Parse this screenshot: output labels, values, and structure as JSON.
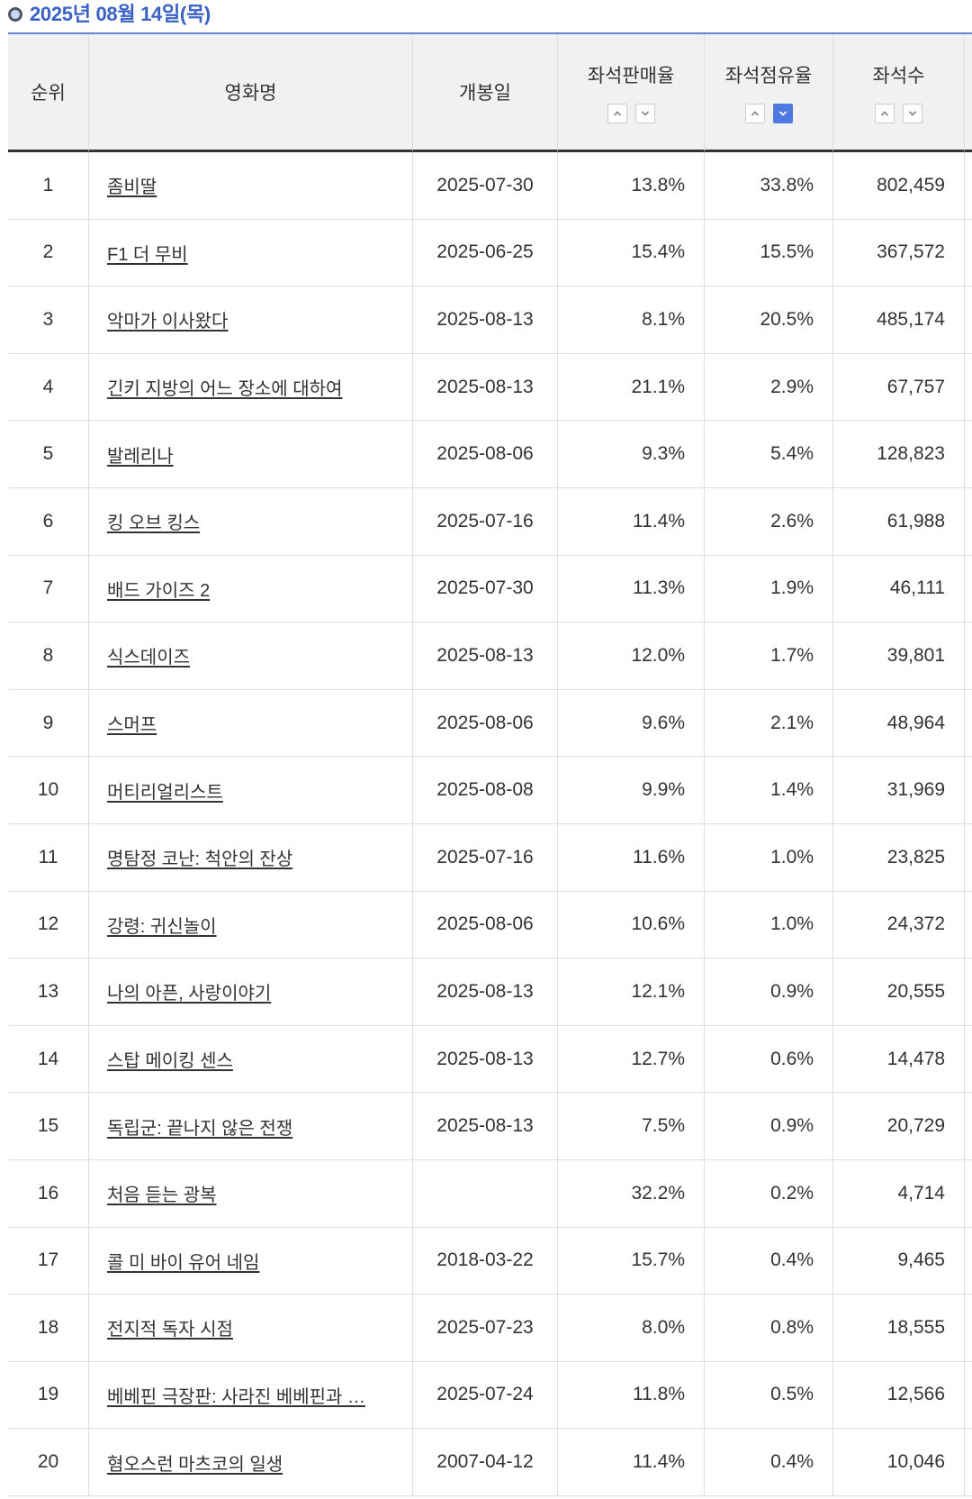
{
  "page": {
    "date_title": "2025년 08월 14일(목)"
  },
  "icons": {
    "bullet": "circle-bullet-icon",
    "sort_asc": "chevron-up-icon",
    "sort_desc": "chevron-down-icon"
  },
  "colors": {
    "accent": "#3a62c4",
    "title_rule": "#5d82d6",
    "header_bg": "#f1f1f1",
    "header_rule": "#333333",
    "grid": "#dedede",
    "text": "#333333",
    "sort_active": "#4f78e0",
    "sort_border": "#cccccc",
    "sort_chevron": "#8a8a8a",
    "bullet_ring": "#4d5566",
    "bullet_fill": "#c9d6ee"
  },
  "table": {
    "columns": [
      {
        "label": "순위",
        "sortable": false
      },
      {
        "label": "영화명",
        "sortable": false
      },
      {
        "label": "개봉일",
        "sortable": false
      },
      {
        "label": "좌석판매율",
        "sortable": true,
        "sort_asc_active": false,
        "sort_desc_active": false
      },
      {
        "label": "좌석점유율",
        "sortable": true,
        "sort_asc_active": false,
        "sort_desc_active": true
      },
      {
        "label": "좌석수",
        "sortable": true,
        "sort_asc_active": false,
        "sort_desc_active": false
      }
    ],
    "rows": [
      {
        "rank": "1",
        "title": "좀비딸",
        "open_date": "2025-07-30",
        "seat_sales_rate": "13.8%",
        "seat_share": "33.8%",
        "seats": "802,459"
      },
      {
        "rank": "2",
        "title": "F1 더 무비",
        "open_date": "2025-06-25",
        "seat_sales_rate": "15.4%",
        "seat_share": "15.5%",
        "seats": "367,572"
      },
      {
        "rank": "3",
        "title": "악마가 이사왔다",
        "open_date": "2025-08-13",
        "seat_sales_rate": "8.1%",
        "seat_share": "20.5%",
        "seats": "485,174"
      },
      {
        "rank": "4",
        "title": "긴키 지방의 어느 장소에 대하여",
        "open_date": "2025-08-13",
        "seat_sales_rate": "21.1%",
        "seat_share": "2.9%",
        "seats": "67,757"
      },
      {
        "rank": "5",
        "title": "발레리나",
        "open_date": "2025-08-06",
        "seat_sales_rate": "9.3%",
        "seat_share": "5.4%",
        "seats": "128,823"
      },
      {
        "rank": "6",
        "title": "킹 오브 킹스",
        "open_date": "2025-07-16",
        "seat_sales_rate": "11.4%",
        "seat_share": "2.6%",
        "seats": "61,988"
      },
      {
        "rank": "7",
        "title": "배드 가이즈 2",
        "open_date": "2025-07-30",
        "seat_sales_rate": "11.3%",
        "seat_share": "1.9%",
        "seats": "46,111"
      },
      {
        "rank": "8",
        "title": "식스데이즈",
        "open_date": "2025-08-13",
        "seat_sales_rate": "12.0%",
        "seat_share": "1.7%",
        "seats": "39,801"
      },
      {
        "rank": "9",
        "title": "스머프",
        "open_date": "2025-08-06",
        "seat_sales_rate": "9.6%",
        "seat_share": "2.1%",
        "seats": "48,964"
      },
      {
        "rank": "10",
        "title": "머티리얼리스트",
        "open_date": "2025-08-08",
        "seat_sales_rate": "9.9%",
        "seat_share": "1.4%",
        "seats": "31,969"
      },
      {
        "rank": "11",
        "title": "명탐정 코난: 척안의 잔상",
        "open_date": "2025-07-16",
        "seat_sales_rate": "11.6%",
        "seat_share": "1.0%",
        "seats": "23,825"
      },
      {
        "rank": "12",
        "title": "강령: 귀신놀이",
        "open_date": "2025-08-06",
        "seat_sales_rate": "10.6%",
        "seat_share": "1.0%",
        "seats": "24,372"
      },
      {
        "rank": "13",
        "title": "나의 아픈, 사랑이야기",
        "open_date": "2025-08-13",
        "seat_sales_rate": "12.1%",
        "seat_share": "0.9%",
        "seats": "20,555"
      },
      {
        "rank": "14",
        "title": "스탑 메이킹 센스",
        "open_date": "2025-08-13",
        "seat_sales_rate": "12.7%",
        "seat_share": "0.6%",
        "seats": "14,478"
      },
      {
        "rank": "15",
        "title": "독립군: 끝나지 않은 전쟁",
        "open_date": "2025-08-13",
        "seat_sales_rate": "7.5%",
        "seat_share": "0.9%",
        "seats": "20,729"
      },
      {
        "rank": "16",
        "title": "처음 듣는 광복",
        "open_date": "",
        "seat_sales_rate": "32.2%",
        "seat_share": "0.2%",
        "seats": "4,714"
      },
      {
        "rank": "17",
        "title": "콜 미 바이 유어 네임",
        "open_date": "2018-03-22",
        "seat_sales_rate": "15.7%",
        "seat_share": "0.4%",
        "seats": "9,465"
      },
      {
        "rank": "18",
        "title": "전지적 독자 시점",
        "open_date": "2025-07-23",
        "seat_sales_rate": "8.0%",
        "seat_share": "0.8%",
        "seats": "18,555"
      },
      {
        "rank": "19",
        "title": "베베핀 극장판: 사라진 베베핀과 …",
        "open_date": "2025-07-24",
        "seat_sales_rate": "11.8%",
        "seat_share": "0.5%",
        "seats": "12,566"
      },
      {
        "rank": "20",
        "title": "혐오스런 마츠코의 일생",
        "open_date": "2007-04-12",
        "seat_sales_rate": "11.4%",
        "seat_share": "0.4%",
        "seats": "10,046"
      }
    ]
  }
}
